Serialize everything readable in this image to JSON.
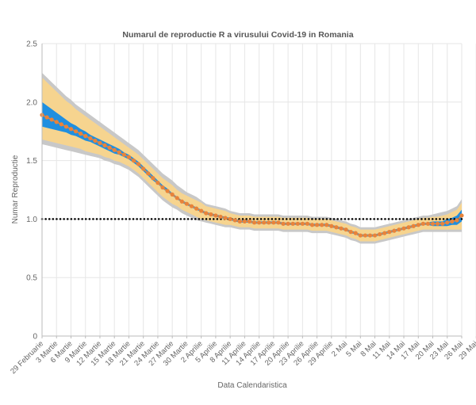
{
  "chart_data": {
    "type": "line",
    "title": "Numarul de reproductie R a virusului Covid-19 in Romania",
    "xlabel": "Data Calendaristica",
    "ylabel": "Numar Reproductie",
    "ylim": [
      0,
      2.5
    ],
    "yticks": [
      "0",
      "0.5",
      "1.0",
      "1.5",
      "2.0",
      "2.5"
    ],
    "x_start_date": "2020-02-29",
    "xtick_labels": [
      "29 Februarie",
      "3 Martie",
      "6 Martie",
      "9 Martie",
      "12 Martie",
      "15 Martie",
      "18 Martie",
      "21 Martie",
      "24 Martie",
      "27 Martie",
      "30 Martie",
      "2 Aprilie",
      "5 Aprilie",
      "8 Aprilie",
      "11 Aprilie",
      "14 Aprilie",
      "17 Aprilie",
      "20 Aprilie",
      "23 Aprilie",
      "26 Aprilie",
      "29 Aprilie",
      "2 Mai",
      "5 Mai",
      "8 Mai",
      "11 Mai",
      "14 Mai",
      "17 Mai",
      "20 Mai",
      "23 Mai",
      "26 Mai",
      "29 Mai"
    ],
    "reference_line": 1.0,
    "grid": true,
    "colors": {
      "estimate": "#e8833a",
      "inner_band": "#1f8fe0",
      "outer_band": "#f6d48f",
      "outermost_band": "#c8c8c8",
      "reference": "#000000",
      "title": "#555555",
      "axis_text": "#666666",
      "grid": "#e6e6e6"
    },
    "series": [
      {
        "values": [
          1.89,
          1.87,
          1.85,
          1.83,
          1.81,
          1.79,
          1.77,
          1.75,
          1.73,
          1.71,
          1.69,
          1.67,
          1.65,
          1.63,
          1.61,
          1.59,
          1.57,
          1.55,
          1.53,
          1.5,
          1.47,
          1.43,
          1.39,
          1.35,
          1.31,
          1.27,
          1.24,
          1.21,
          1.18,
          1.15,
          1.13,
          1.11,
          1.09,
          1.07,
          1.05,
          1.04,
          1.03,
          1.02,
          1.01,
          1.0,
          0.99,
          0.98,
          0.98,
          0.98,
          0.97,
          0.97,
          0.97,
          0.97,
          0.97,
          0.97,
          0.96,
          0.96,
          0.96,
          0.96,
          0.96,
          0.96,
          0.95,
          0.95,
          0.95,
          0.95,
          0.94,
          0.93,
          0.92,
          0.91,
          0.89,
          0.88,
          0.86,
          0.86,
          0.86,
          0.86,
          0.87,
          0.88,
          0.89,
          0.9,
          0.91,
          0.92,
          0.93,
          0.94,
          0.95,
          0.96,
          0.96,
          0.96,
          0.96,
          0.96,
          0.97,
          0.98,
          0.99,
          1.03
        ],
        "inner_band": [
          [
            1.79,
            2.0
          ],
          [
            1.78,
            1.97
          ],
          [
            1.77,
            1.94
          ],
          [
            1.76,
            1.91
          ],
          [
            1.75,
            1.88
          ],
          [
            1.74,
            1.85
          ],
          [
            1.72,
            1.82
          ],
          [
            1.71,
            1.8
          ],
          [
            1.69,
            1.77
          ],
          [
            1.67,
            1.75
          ],
          [
            1.66,
            1.72
          ],
          [
            1.64,
            1.7
          ],
          [
            1.62,
            1.68
          ],
          [
            1.6,
            1.66
          ],
          [
            1.58,
            1.64
          ],
          [
            1.56,
            1.62
          ],
          [
            1.55,
            1.6
          ],
          [
            1.53,
            1.57
          ],
          [
            1.51,
            1.55
          ],
          [
            1.48,
            1.52
          ],
          [
            1.45,
            1.49
          ],
          [
            1.41,
            1.45
          ],
          [
            1.37,
            1.41
          ],
          [
            1.33,
            1.37
          ],
          [
            1.3,
            1.33
          ],
          [
            1.26,
            1.29
          ],
          [
            1.23,
            1.26
          ],
          [
            1.2,
            1.22
          ],
          [
            1.17,
            1.19
          ],
          [
            1.14,
            1.16
          ],
          [
            1.12,
            1.14
          ],
          [
            1.1,
            1.12
          ],
          [
            1.08,
            1.1
          ],
          [
            1.06,
            1.08
          ],
          [
            1.04,
            1.06
          ],
          [
            1.03,
            1.05
          ],
          [
            1.02,
            1.04
          ],
          [
            1.01,
            1.03
          ],
          [
            1.0,
            1.02
          ],
          [
            0.99,
            1.01
          ],
          [
            0.98,
            1.0
          ],
          [
            0.97,
            0.99
          ],
          [
            0.97,
            0.99
          ],
          [
            0.97,
            0.99
          ],
          [
            0.96,
            0.98
          ],
          [
            0.96,
            0.98
          ],
          [
            0.96,
            0.98
          ],
          [
            0.96,
            0.98
          ],
          [
            0.96,
            0.98
          ],
          [
            0.96,
            0.98
          ],
          [
            0.95,
            0.97
          ],
          [
            0.95,
            0.97
          ],
          [
            0.95,
            0.97
          ],
          [
            0.95,
            0.97
          ],
          [
            0.95,
            0.97
          ],
          [
            0.95,
            0.97
          ],
          [
            0.94,
            0.96
          ],
          [
            0.94,
            0.96
          ],
          [
            0.94,
            0.96
          ],
          [
            0.94,
            0.96
          ],
          [
            0.93,
            0.95
          ],
          [
            0.92,
            0.94
          ],
          [
            0.91,
            0.93
          ],
          [
            0.9,
            0.92
          ],
          [
            0.88,
            0.9
          ],
          [
            0.87,
            0.89
          ],
          [
            0.85,
            0.87
          ],
          [
            0.85,
            0.87
          ],
          [
            0.85,
            0.87
          ],
          [
            0.85,
            0.87
          ],
          [
            0.86,
            0.88
          ],
          [
            0.87,
            0.89
          ],
          [
            0.88,
            0.9
          ],
          [
            0.89,
            0.91
          ],
          [
            0.9,
            0.92
          ],
          [
            0.91,
            0.93
          ],
          [
            0.92,
            0.94
          ],
          [
            0.93,
            0.95
          ],
          [
            0.94,
            0.96
          ],
          [
            0.95,
            0.97
          ],
          [
            0.95,
            0.97
          ],
          [
            0.94,
            0.98
          ],
          [
            0.94,
            0.98
          ],
          [
            0.94,
            0.98
          ],
          [
            0.94,
            1.0
          ],
          [
            0.95,
            1.01
          ],
          [
            0.95,
            1.03
          ],
          [
            0.98,
            1.08
          ]
        ],
        "outer_band": [
          [
            1.68,
            2.21
          ],
          [
            1.67,
            2.17
          ],
          [
            1.66,
            2.13
          ],
          [
            1.65,
            2.09
          ],
          [
            1.64,
            2.05
          ],
          [
            1.63,
            2.01
          ],
          [
            1.62,
            1.98
          ],
          [
            1.61,
            1.94
          ],
          [
            1.6,
            1.91
          ],
          [
            1.58,
            1.88
          ],
          [
            1.57,
            1.85
          ],
          [
            1.56,
            1.82
          ],
          [
            1.55,
            1.79
          ],
          [
            1.53,
            1.76
          ],
          [
            1.52,
            1.73
          ],
          [
            1.5,
            1.7
          ],
          [
            1.49,
            1.67
          ],
          [
            1.47,
            1.64
          ],
          [
            1.45,
            1.61
          ],
          [
            1.42,
            1.58
          ],
          [
            1.39,
            1.55
          ],
          [
            1.35,
            1.51
          ],
          [
            1.31,
            1.47
          ],
          [
            1.27,
            1.43
          ],
          [
            1.23,
            1.39
          ],
          [
            1.19,
            1.35
          ],
          [
            1.16,
            1.32
          ],
          [
            1.13,
            1.29
          ],
          [
            1.11,
            1.25
          ],
          [
            1.08,
            1.22
          ],
          [
            1.06,
            1.2
          ],
          [
            1.04,
            1.18
          ],
          [
            1.02,
            1.16
          ],
          [
            1.0,
            1.14
          ],
          [
            0.99,
            1.11
          ],
          [
            0.98,
            1.1
          ],
          [
            0.97,
            1.09
          ],
          [
            0.96,
            1.08
          ],
          [
            0.95,
            1.07
          ],
          [
            0.95,
            1.05
          ],
          [
            0.94,
            1.04
          ],
          [
            0.93,
            1.03
          ],
          [
            0.93,
            1.03
          ],
          [
            0.93,
            1.03
          ],
          [
            0.92,
            1.02
          ],
          [
            0.92,
            1.02
          ],
          [
            0.92,
            1.02
          ],
          [
            0.92,
            1.02
          ],
          [
            0.92,
            1.02
          ],
          [
            0.92,
            1.02
          ],
          [
            0.91,
            1.01
          ],
          [
            0.91,
            1.01
          ],
          [
            0.91,
            1.01
          ],
          [
            0.91,
            1.01
          ],
          [
            0.91,
            1.01
          ],
          [
            0.91,
            1.01
          ],
          [
            0.9,
            1.0
          ],
          [
            0.9,
            1.0
          ],
          [
            0.9,
            1.0
          ],
          [
            0.9,
            1.0
          ],
          [
            0.89,
            0.99
          ],
          [
            0.88,
            0.98
          ],
          [
            0.87,
            0.97
          ],
          [
            0.86,
            0.96
          ],
          [
            0.84,
            0.94
          ],
          [
            0.83,
            0.93
          ],
          [
            0.81,
            0.91
          ],
          [
            0.81,
            0.91
          ],
          [
            0.81,
            0.91
          ],
          [
            0.81,
            0.91
          ],
          [
            0.82,
            0.92
          ],
          [
            0.83,
            0.93
          ],
          [
            0.84,
            0.94
          ],
          [
            0.85,
            0.95
          ],
          [
            0.86,
            0.96
          ],
          [
            0.87,
            0.97
          ],
          [
            0.88,
            0.98
          ],
          [
            0.89,
            0.99
          ],
          [
            0.9,
            1.0
          ],
          [
            0.91,
            1.01
          ],
          [
            0.91,
            1.01
          ],
          [
            0.91,
            1.02
          ],
          [
            0.91,
            1.02
          ],
          [
            0.91,
            1.03
          ],
          [
            0.91,
            1.04
          ],
          [
            0.91,
            1.06
          ],
          [
            0.91,
            1.08
          ],
          [
            0.91,
            1.14
          ]
        ],
        "outermost_band": [
          [
            1.64,
            2.25
          ],
          [
            1.63,
            2.21
          ],
          [
            1.62,
            2.17
          ],
          [
            1.61,
            2.13
          ],
          [
            1.6,
            2.09
          ],
          [
            1.59,
            2.05
          ],
          [
            1.58,
            2.02
          ],
          [
            1.57,
            1.98
          ],
          [
            1.56,
            1.95
          ],
          [
            1.55,
            1.92
          ],
          [
            1.54,
            1.89
          ],
          [
            1.53,
            1.86
          ],
          [
            1.52,
            1.83
          ],
          [
            1.5,
            1.8
          ],
          [
            1.49,
            1.77
          ],
          [
            1.47,
            1.74
          ],
          [
            1.46,
            1.71
          ],
          [
            1.44,
            1.68
          ],
          [
            1.42,
            1.65
          ],
          [
            1.39,
            1.62
          ],
          [
            1.36,
            1.59
          ],
          [
            1.32,
            1.55
          ],
          [
            1.28,
            1.51
          ],
          [
            1.24,
            1.47
          ],
          [
            1.2,
            1.43
          ],
          [
            1.16,
            1.39
          ],
          [
            1.13,
            1.36
          ],
          [
            1.1,
            1.33
          ],
          [
            1.08,
            1.29
          ],
          [
            1.05,
            1.26
          ],
          [
            1.03,
            1.23
          ],
          [
            1.01,
            1.21
          ],
          [
            0.99,
            1.19
          ],
          [
            0.98,
            1.16
          ],
          [
            0.97,
            1.13
          ],
          [
            0.96,
            1.12
          ],
          [
            0.95,
            1.11
          ],
          [
            0.94,
            1.1
          ],
          [
            0.93,
            1.09
          ],
          [
            0.93,
            1.07
          ],
          [
            0.92,
            1.06
          ],
          [
            0.91,
            1.05
          ],
          [
            0.91,
            1.05
          ],
          [
            0.91,
            1.05
          ],
          [
            0.9,
            1.04
          ],
          [
            0.9,
            1.04
          ],
          [
            0.9,
            1.04
          ],
          [
            0.9,
            1.04
          ],
          [
            0.9,
            1.04
          ],
          [
            0.9,
            1.04
          ],
          [
            0.89,
            1.03
          ],
          [
            0.89,
            1.03
          ],
          [
            0.89,
            1.03
          ],
          [
            0.89,
            1.03
          ],
          [
            0.89,
            1.03
          ],
          [
            0.89,
            1.03
          ],
          [
            0.88,
            1.02
          ],
          [
            0.88,
            1.02
          ],
          [
            0.88,
            1.02
          ],
          [
            0.88,
            1.02
          ],
          [
            0.87,
            1.01
          ],
          [
            0.86,
            1.0
          ],
          [
            0.85,
            0.99
          ],
          [
            0.84,
            0.98
          ],
          [
            0.82,
            0.96
          ],
          [
            0.81,
            0.95
          ],
          [
            0.79,
            0.93
          ],
          [
            0.79,
            0.93
          ],
          [
            0.79,
            0.93
          ],
          [
            0.79,
            0.93
          ],
          [
            0.8,
            0.94
          ],
          [
            0.81,
            0.95
          ],
          [
            0.82,
            0.96
          ],
          [
            0.83,
            0.97
          ],
          [
            0.84,
            0.98
          ],
          [
            0.85,
            0.99
          ],
          [
            0.86,
            1.0
          ],
          [
            0.87,
            1.01
          ],
          [
            0.88,
            1.02
          ],
          [
            0.89,
            1.03
          ],
          [
            0.89,
            1.03
          ],
          [
            0.89,
            1.04
          ],
          [
            0.89,
            1.05
          ],
          [
            0.89,
            1.06
          ],
          [
            0.89,
            1.07
          ],
          [
            0.89,
            1.09
          ],
          [
            0.89,
            1.11
          ],
          [
            0.89,
            1.17
          ]
        ]
      }
    ]
  }
}
